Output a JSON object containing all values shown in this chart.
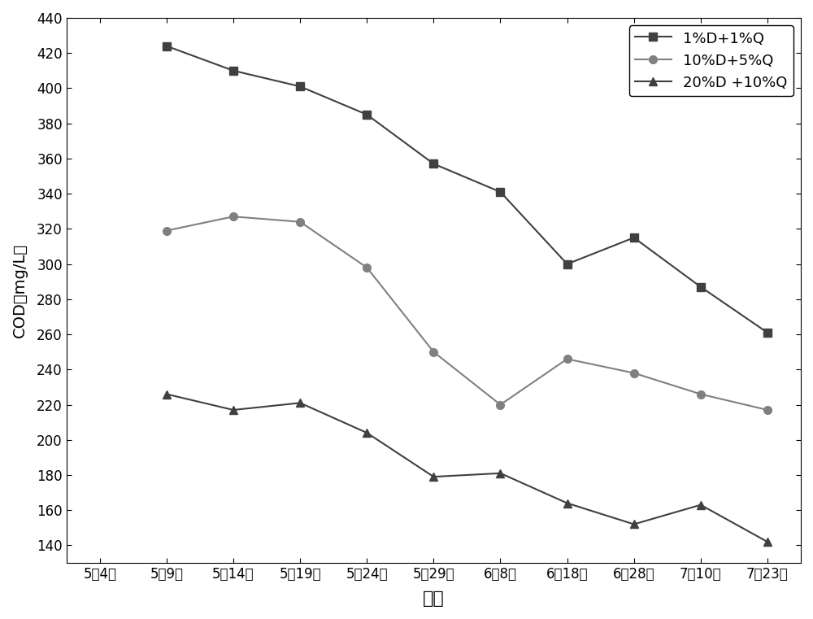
{
  "x_labels": [
    "5月4日",
    "5月9日",
    "5月14日",
    "5月19日",
    "5月24日",
    "5月29日",
    "6月8日",
    "6月18日",
    "6月28日",
    "7月10日",
    "7月23日"
  ],
  "series": [
    {
      "label": "1%D+1%Q",
      "x_indices": [
        1,
        2,
        3,
        4,
        5,
        6,
        7,
        8,
        9,
        10
      ],
      "y": [
        424,
        410,
        401,
        385,
        357,
        341,
        300,
        315,
        287,
        261
      ],
      "color": "#404040",
      "marker": "s",
      "markersize": 7,
      "linewidth": 1.5
    },
    {
      "label": "10%D+5%Q",
      "x_indices": [
        1,
        2,
        3,
        4,
        5,
        6,
        7,
        8,
        9,
        10
      ],
      "y": [
        319,
        327,
        324,
        298,
        250,
        220,
        246,
        238,
        226,
        217
      ],
      "color": "#808080",
      "marker": "o",
      "markersize": 7,
      "linewidth": 1.5
    },
    {
      "label": "20%D +10%Q",
      "x_indices": [
        1,
        2,
        3,
        4,
        5,
        6,
        7,
        8,
        9,
        10
      ],
      "y": [
        226,
        217,
        221,
        204,
        179,
        181,
        164,
        152,
        163,
        142
      ],
      "color": "#404040",
      "marker": "^",
      "markersize": 7,
      "linewidth": 1.5
    }
  ],
  "xlabel": "日期",
  "ylabel": "COD（mg/L）",
  "ylim": [
    130,
    440
  ],
  "yticks": [
    140,
    160,
    180,
    200,
    220,
    240,
    260,
    280,
    300,
    320,
    340,
    360,
    380,
    400,
    420,
    440
  ],
  "background_color": "#ffffff",
  "legend_loc": "upper right",
  "axis_fontsize": 14,
  "tick_fontsize": 12,
  "legend_fontsize": 13
}
